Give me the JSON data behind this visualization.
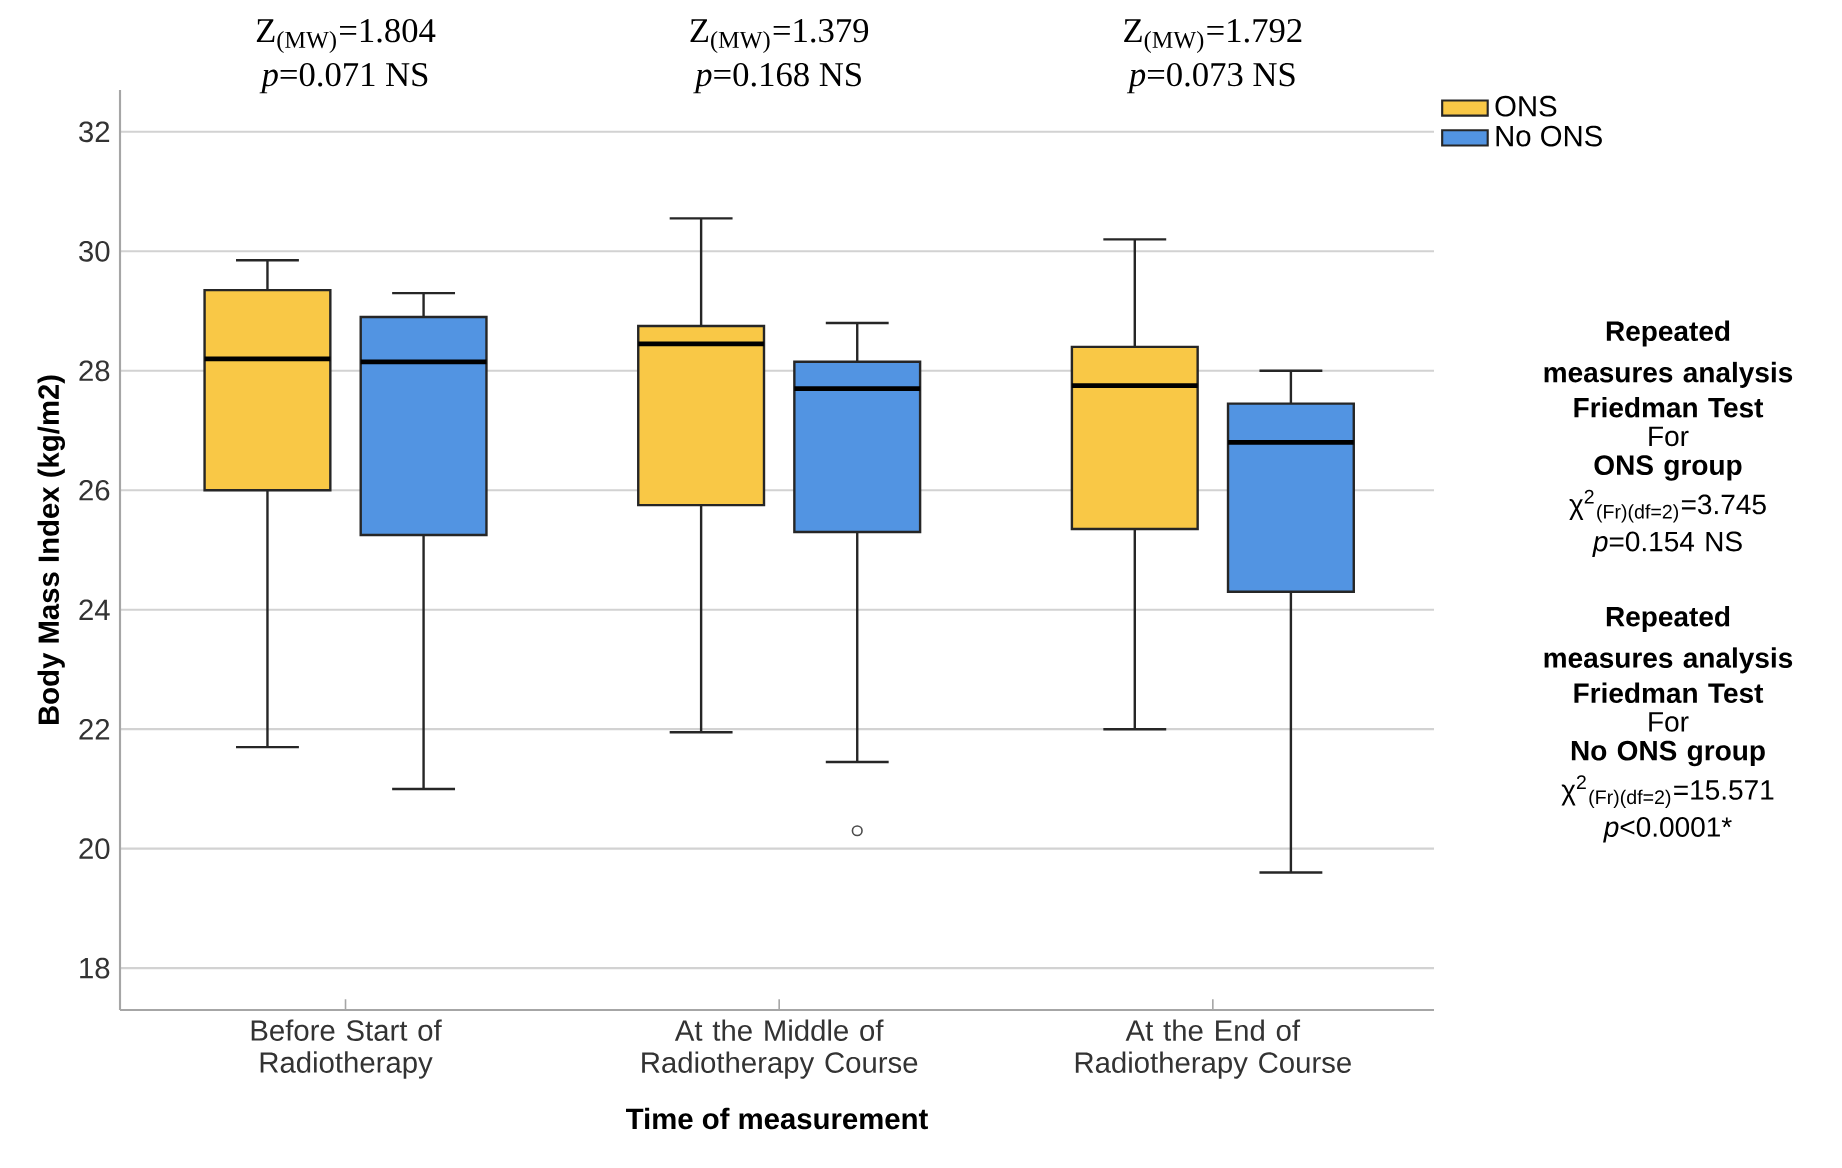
{
  "chart_data": {
    "type": "box",
    "categories": [
      "Before Start of Radiotherapy",
      "At the Middle of Radiotherapy Course",
      "At the End of Radiotherapy Course"
    ],
    "series": [
      {
        "name": "ONS",
        "color": "#f9c846",
        "boxes": [
          {
            "low": 21.7,
            "q1": 26.0,
            "median": 28.2,
            "q3": 29.35,
            "high": 29.85
          },
          {
            "low": 21.95,
            "q1": 25.75,
            "median": 28.45,
            "q3": 28.75,
            "high": 30.55
          },
          {
            "low": 22.0,
            "q1": 25.35,
            "median": 27.75,
            "q3": 28.4,
            "high": 30.2
          }
        ]
      },
      {
        "name": "No ONS",
        "color": "#5294e2",
        "boxes": [
          {
            "low": 21.0,
            "q1": 25.25,
            "median": 28.15,
            "q3": 28.9,
            "high": 29.3
          },
          {
            "low": 21.45,
            "q1": 25.3,
            "median": 27.7,
            "q3": 28.15,
            "high": 28.8,
            "outliers": [
              20.3
            ]
          },
          {
            "low": 19.6,
            "q1": 24.3,
            "median": 26.8,
            "q3": 27.45,
            "high": 28.0
          }
        ]
      }
    ],
    "ylim": [
      17.3,
      32.7
    ],
    "yticks": [
      18,
      20,
      22,
      24,
      26,
      28,
      30,
      32
    ],
    "ylabel": "Body Mass Index (kg/m2)",
    "xlabel": "Time of measurement",
    "grid": "y",
    "legend": "top right",
    "annotations": [
      "Z$_{(MW)}$=1.804",
      "*p*=0.071 NS",
      "Z$_{(MW)}$=1.379",
      "*p*=0.168 NS",
      "Z$_{(MW)}$=1.792",
      "*p*=0.073 NS",
      "Repeated measures analysis",
      "Friedman Test",
      "For",
      "ONS group",
      "χ$^{2}$$_{(Fr)(df=2)}$=3.745",
      "*p*=0.154 NS",
      "Repeated measures analysis",
      "Friedman Test",
      "For",
      "No ONS group",
      "χ$^{2}$$_{(Fr)(df=2)}$=15.571",
      "*p*<0.0001*"
    ]
  }
}
